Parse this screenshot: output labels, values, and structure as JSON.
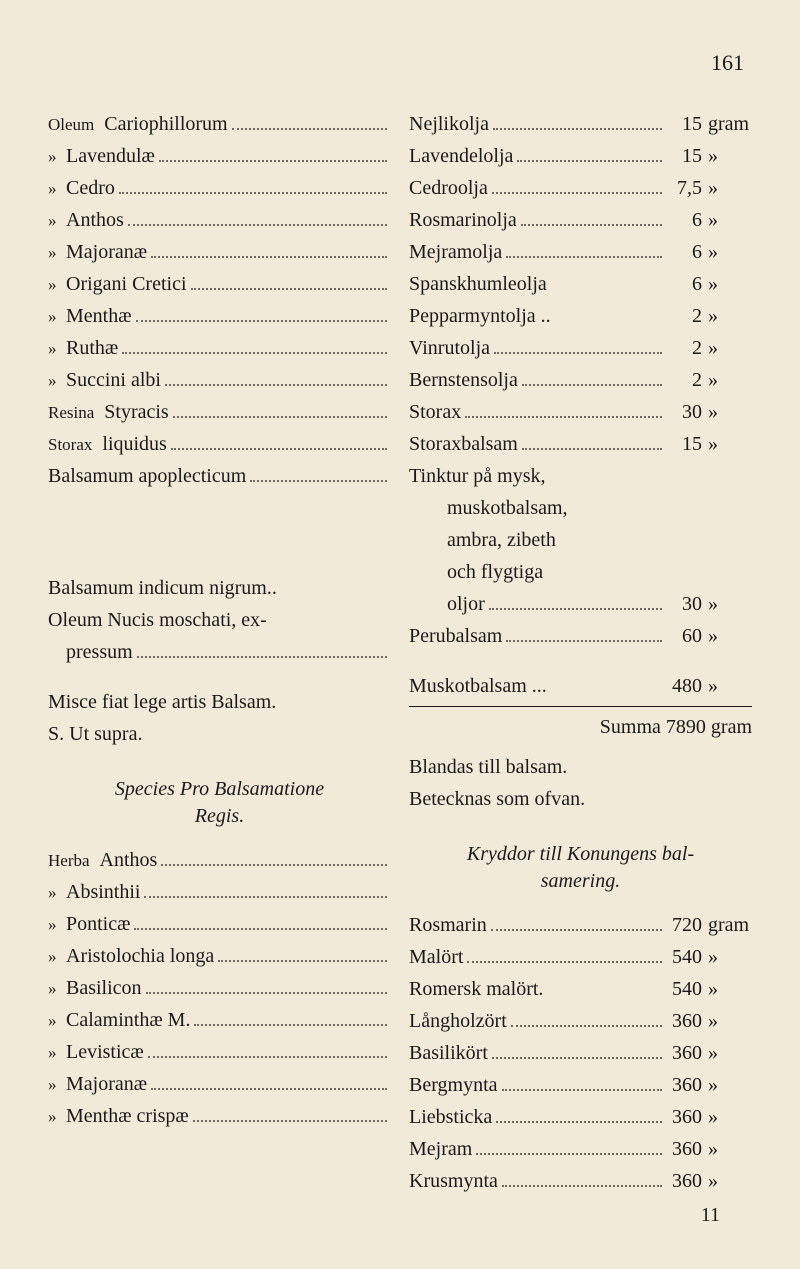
{
  "page_number": "161",
  "footer_number": "11",
  "left": {
    "upper": [
      {
        "tag": "Oleum",
        "label": "Cariophillorum"
      },
      {
        "tag": "»",
        "label": "Lavendulæ"
      },
      {
        "tag": "»",
        "label": "Cedro"
      },
      {
        "tag": "»",
        "label": "Anthos"
      },
      {
        "tag": "»",
        "label": "Majoranæ"
      },
      {
        "tag": "»",
        "label": "Origani Cretici"
      },
      {
        "tag": "»",
        "label": "Menthæ"
      },
      {
        "tag": "»",
        "label": "Ruthæ"
      },
      {
        "tag": "»",
        "label": "Succini albi"
      },
      {
        "tag": "Resina",
        "label": "Styracis"
      },
      {
        "tag": "Storax",
        "label": "liquidus"
      },
      {
        "tag": "",
        "label": "Balsamum apoplecticum",
        "full": true
      }
    ],
    "mid": [
      "Balsamum indicum nigrum..",
      "Oleum Nucis moschati, ex-"
    ],
    "mid_row": {
      "label": "pressum"
    },
    "misce": [
      "Misce fiat lege artis Balsam.",
      "S. Ut supra."
    ],
    "species_title": [
      "Species Pro Balsamatione",
      "Regis."
    ],
    "lower": [
      {
        "tag": "Herba",
        "label": "Anthos"
      },
      {
        "tag": "»",
        "label": "Absinthii"
      },
      {
        "tag": "»",
        "label": "Ponticæ"
      },
      {
        "tag": "»",
        "label": "Aristolochia longa"
      },
      {
        "tag": "»",
        "label": "Basilicon"
      },
      {
        "tag": "»",
        "label": "Calaminthæ M."
      },
      {
        "tag": "»",
        "label": "Levisticæ"
      },
      {
        "tag": "»",
        "label": "Majoranæ"
      },
      {
        "tag": "»",
        "label": "Menthæ crispæ"
      }
    ]
  },
  "right": {
    "upper": [
      {
        "label": "Nejlikolja",
        "val": "15",
        "unit": "gram"
      },
      {
        "label": "Lavendelolja",
        "val": "15",
        "unit": "»"
      },
      {
        "label": "Cedroolja",
        "val": "7,5",
        "unit": "»"
      },
      {
        "label": "Rosmarinolja",
        "val": "6",
        "unit": "»"
      },
      {
        "label": "Mejramolja",
        "val": "6",
        "unit": "»"
      },
      {
        "label": "Spanskhumleolja",
        "val": "6",
        "unit": "»",
        "nodots": true
      },
      {
        "label": "Pepparmyntolja ..",
        "val": "2",
        "unit": "»",
        "nodots": true
      },
      {
        "label": "Vinrutolja",
        "val": "2",
        "unit": "»"
      },
      {
        "label": "Bernstensolja",
        "val": "2",
        "unit": "»"
      },
      {
        "label": "Storax",
        "val": "30",
        "unit": "»"
      },
      {
        "label": "Storaxbalsam",
        "val": "15",
        "unit": "»"
      }
    ],
    "tinktur_lines": [
      "Tinktur på mysk,",
      "muskotbalsam,",
      "ambra, zibeth",
      "och flygtiga"
    ],
    "oljor": {
      "label": "oljor",
      "val": "30",
      "unit": "»"
    },
    "peru": {
      "label": "Perubalsam",
      "val": "60",
      "unit": "»"
    },
    "muskot": {
      "label": "Muskotbalsam ...",
      "val": "480",
      "unit": "»"
    },
    "summa": {
      "label": "Summa",
      "val": "7890",
      "unit": "gram"
    },
    "blandas": [
      "Blandas till balsam.",
      "Betecknas som ofvan."
    ],
    "kryddor_title": [
      "Kryddor till Konungens bal-",
      "samering."
    ],
    "lower": [
      {
        "label": "Rosmarin",
        "val": "720",
        "unit": "gram"
      },
      {
        "label": "Malört",
        "val": "540",
        "unit": "»"
      },
      {
        "label": "Romersk malört.",
        "val": "540",
        "unit": "»",
        "nodots": true
      },
      {
        "label": "Långholzört",
        "val": "360",
        "unit": "»"
      },
      {
        "label": "Basilikört",
        "val": "360",
        "unit": "»"
      },
      {
        "label": "Bergmynta",
        "val": "360",
        "unit": "»"
      },
      {
        "label": "Liebsticka",
        "val": "360",
        "unit": "»"
      },
      {
        "label": "Mejram",
        "val": "360",
        "unit": "»"
      },
      {
        "label": "Krusmynta",
        "val": "360",
        "unit": "»"
      }
    ]
  }
}
